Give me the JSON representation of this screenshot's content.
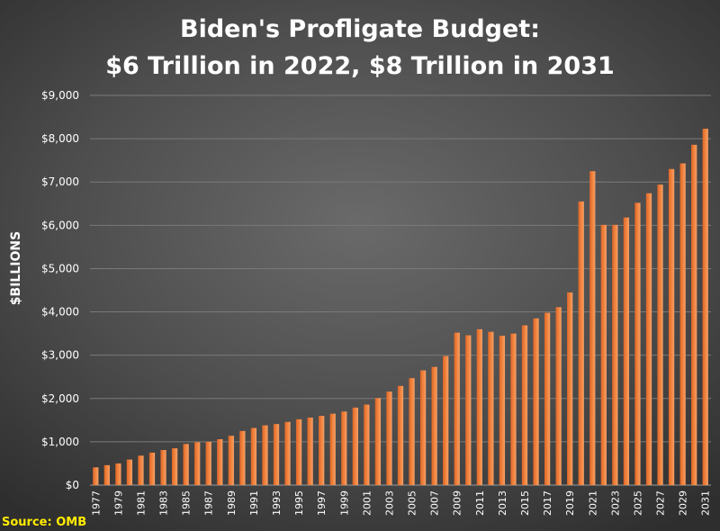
{
  "chart_data": {
    "type": "bar",
    "title_line1": "Biden's Profligate Budget:",
    "title_line2": "$6 Trillion in 2022, $8 Trillion in 2031",
    "ylabel": "$BILLIONS",
    "source": "Source: OMB",
    "ylim": [
      0,
      9000
    ],
    "yticks": [
      0,
      1000,
      2000,
      3000,
      4000,
      5000,
      6000,
      7000,
      8000,
      9000
    ],
    "ytick_labels": [
      "$0",
      "$1,000",
      "$2,000",
      "$3,000",
      "$4,000",
      "$5,000",
      "$6,000",
      "$7,000",
      "$8,000",
      "$9,000"
    ],
    "grid": true,
    "bar_color": "#f0803a",
    "categories": [
      "1977",
      "1978",
      "1979",
      "1980",
      "1981",
      "1982",
      "1983",
      "1984",
      "1985",
      "1986",
      "1987",
      "1988",
      "1989",
      "1990",
      "1991",
      "1992",
      "1993",
      "1994",
      "1995",
      "1996",
      "1997",
      "1998",
      "1999",
      "2000",
      "2001",
      "2002",
      "2003",
      "2004",
      "2005",
      "2006",
      "2007",
      "2008",
      "2009",
      "2010",
      "2011",
      "2012",
      "2013",
      "2014",
      "2015",
      "2016",
      "2017",
      "2018",
      "2019",
      "2020",
      "2021",
      "2022",
      "2023",
      "2024",
      "2025",
      "2026",
      "2027",
      "2028",
      "2029",
      "2030",
      "2031"
    ],
    "xtick_labels": [
      "1977",
      "1979",
      "1981",
      "1983",
      "1985",
      "1987",
      "1989",
      "1991",
      "1993",
      "1995",
      "1997",
      "1999",
      "2001",
      "2003",
      "2005",
      "2007",
      "2009",
      "2011",
      "2013",
      "2015",
      "2017",
      "2019",
      "2021",
      "2023",
      "2025",
      "2027",
      "2029",
      "2031"
    ],
    "values": [
      410,
      460,
      500,
      590,
      680,
      750,
      810,
      850,
      950,
      990,
      1000,
      1060,
      1140,
      1250,
      1320,
      1380,
      1410,
      1460,
      1520,
      1560,
      1600,
      1650,
      1700,
      1790,
      1860,
      2010,
      2160,
      2290,
      2470,
      2650,
      2730,
      2980,
      3520,
      3460,
      3600,
      3540,
      3450,
      3500,
      3690,
      3850,
      3980,
      4110,
      4450,
      6550,
      7250,
      6010,
      6010,
      6180,
      6520,
      6740,
      6940,
      7300,
      7430,
      7860,
      8230
    ]
  }
}
